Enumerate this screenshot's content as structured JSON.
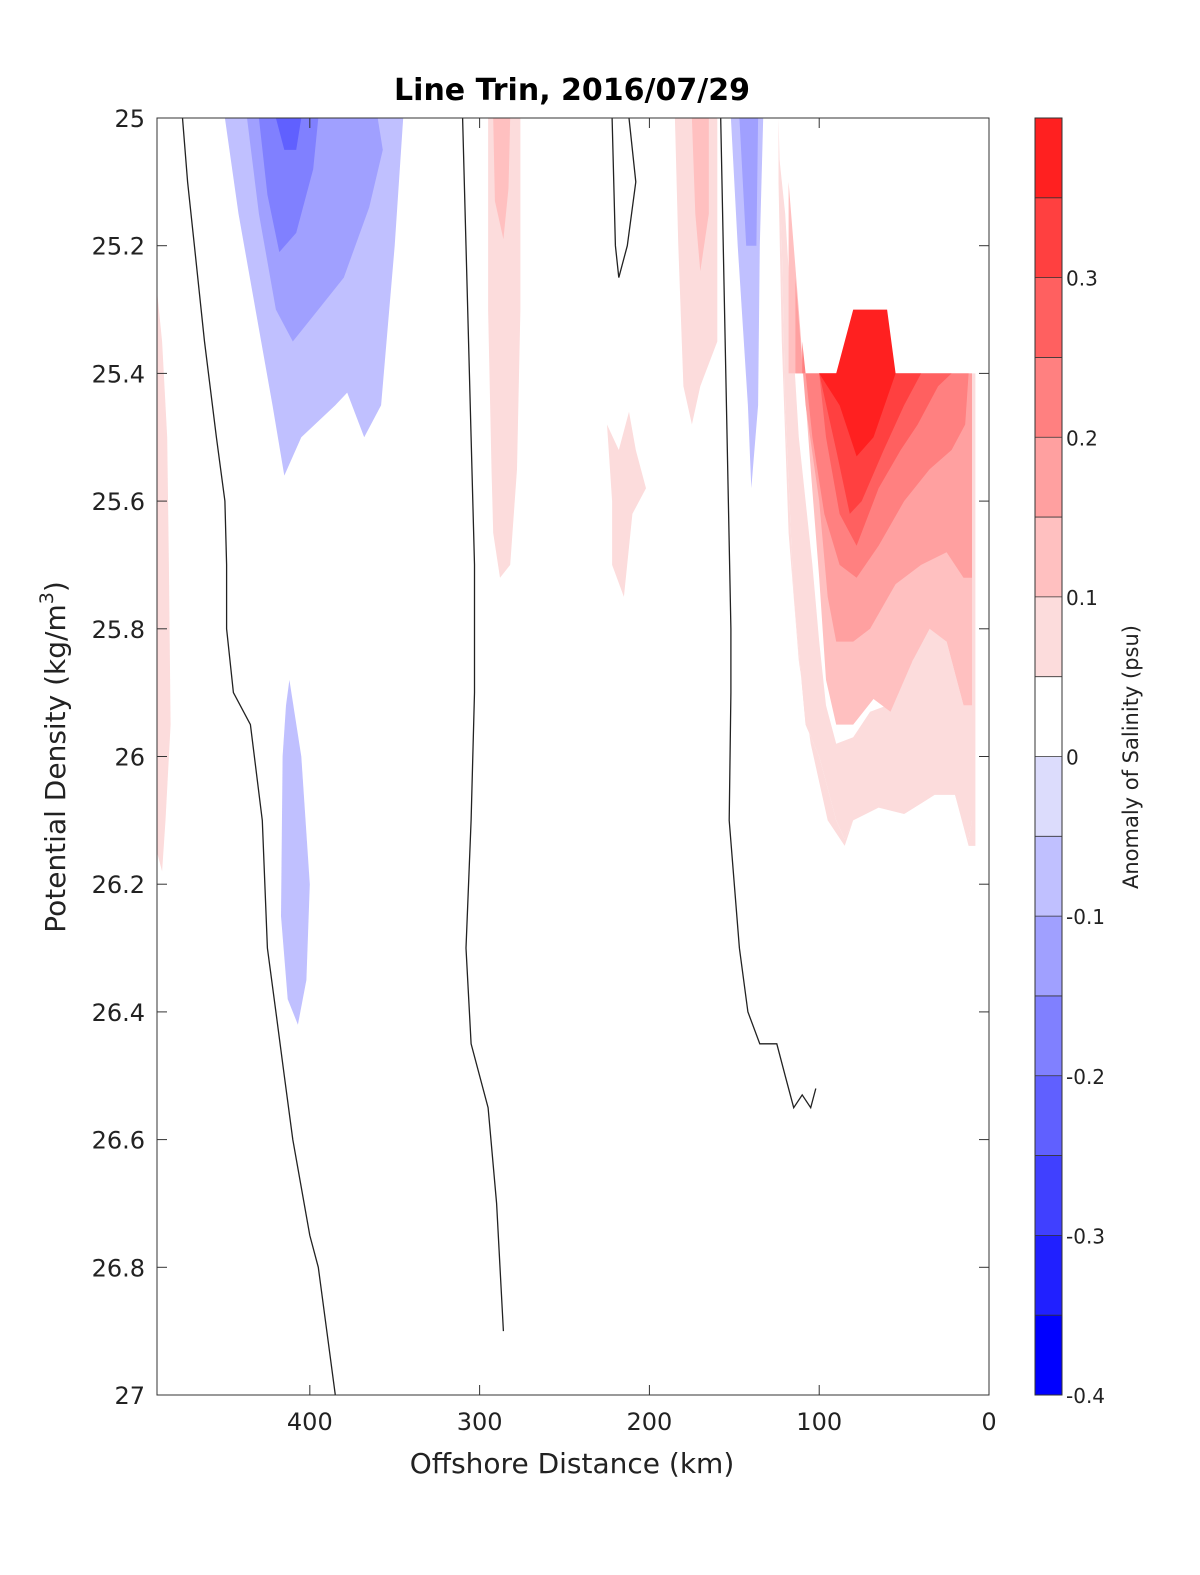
{
  "chart_data": {
    "type": "contourf",
    "title": "Line Trin, 2016/07/29",
    "xlabel": "Offshore Distance (km)",
    "ylabel": "Potential Density (kg/m",
    "ylabel_superscript": "3",
    "ylabel_close": ")",
    "xlim": [
      490,
      0
    ],
    "ylim": [
      25,
      27
    ],
    "x_reversed": true,
    "y_reversed": true,
    "xticks": [
      400,
      300,
      200,
      100,
      0
    ],
    "xtick_labels": [
      "400",
      "300",
      "200",
      "100",
      "0"
    ],
    "yticks": [
      25,
      25.2,
      25.4,
      25.6,
      25.8,
      26,
      26.2,
      26.4,
      26.6,
      26.8,
      27
    ],
    "ytick_labels": [
      "25",
      "25.2",
      "25.4",
      "25.6",
      "25.8",
      "26",
      "26.2",
      "26.4",
      "26.6",
      "26.8",
      "27"
    ],
    "grid": false,
    "colorbar": {
      "label": "Anomaly of Salinity (psu)",
      "range": [
        -0.4,
        0.4
      ],
      "levels": [
        -0.4,
        -0.35,
        -0.3,
        -0.25,
        -0.2,
        -0.15,
        -0.1,
        -0.05,
        0,
        0.05,
        0.1,
        0.15,
        0.2,
        0.25,
        0.3,
        0.35,
        0.4
      ],
      "colors": [
        "#0000ff",
        "#2020ff",
        "#4040ff",
        "#6060ff",
        "#8080ff",
        "#a0a0ff",
        "#c0c0ff",
        "#dcdcfc",
        "#ffffff",
        "#fcdcdc",
        "#ffc0c0",
        "#ffa0a0",
        "#ff8080",
        "#ff6060",
        "#ff4040",
        "#ff2020"
      ],
      "tick_values": [
        -0.4,
        -0.3,
        -0.2,
        -0.1,
        0,
        0.1,
        0.2,
        0.3
      ],
      "tick_labels": [
        "-0.4",
        "-0.3",
        "-0.2",
        "-0.1",
        "0",
        "0.1",
        "0.2",
        "0.3"
      ]
    },
    "filled_regions": [
      {
        "level": 0.05,
        "points": [
          [
            490,
            25.27
          ],
          [
            487,
            25.35
          ],
          [
            484,
            25.5
          ],
          [
            483,
            25.7
          ],
          [
            482,
            25.95
          ],
          [
            485,
            26.1
          ],
          [
            487,
            26.18
          ],
          [
            490,
            26.15
          ]
        ]
      },
      {
        "level": -0.1,
        "points": [
          [
            450,
            25
          ],
          [
            442,
            25.15
          ],
          [
            432,
            25.3
          ],
          [
            422,
            25.45
          ],
          [
            415,
            25.56
          ],
          [
            405,
            25.5
          ],
          [
            385,
            25.45
          ],
          [
            378,
            25.43
          ],
          [
            368,
            25.5
          ],
          [
            358,
            25.45
          ],
          [
            350,
            25.2
          ],
          [
            345,
            25
          ]
        ]
      },
      {
        "level": -0.15,
        "points": [
          [
            437,
            25
          ],
          [
            430,
            25.15
          ],
          [
            420,
            25.3
          ],
          [
            410,
            25.35
          ],
          [
            395,
            25.3
          ],
          [
            380,
            25.25
          ],
          [
            365,
            25.14
          ],
          [
            357,
            25.05
          ],
          [
            360,
            25
          ]
        ]
      },
      {
        "level": -0.2,
        "points": [
          [
            430,
            25
          ],
          [
            425,
            25.12
          ],
          [
            418,
            25.21
          ],
          [
            408,
            25.18
          ],
          [
            398,
            25.08
          ],
          [
            395,
            25
          ]
        ]
      },
      {
        "level": -0.25,
        "points": [
          [
            420,
            25
          ],
          [
            415,
            25.05
          ],
          [
            408,
            25.05
          ],
          [
            405,
            25
          ]
        ]
      },
      {
        "level": -0.1,
        "points": [
          [
            412,
            25.88
          ],
          [
            405,
            26.0
          ],
          [
            400,
            26.2
          ],
          [
            402,
            26.35
          ],
          [
            407,
            26.42
          ],
          [
            413,
            26.38
          ],
          [
            417,
            26.25
          ],
          [
            416,
            26.0
          ],
          [
            414,
            25.92
          ]
        ]
      },
      {
        "level": 0.05,
        "points": [
          [
            295,
            25
          ],
          [
            295,
            25.3
          ],
          [
            293,
            25.55
          ],
          [
            292,
            25.65
          ],
          [
            288,
            25.72
          ],
          [
            282,
            25.7
          ],
          [
            278,
            25.55
          ],
          [
            276,
            25.3
          ],
          [
            276,
            25
          ],
          [
            274,
            25
          ]
        ]
      },
      {
        "level": 0.05,
        "points": [
          [
            295,
            25
          ],
          [
            276,
            25
          ]
        ]
      },
      {
        "level": 0.1,
        "points": [
          [
            292,
            25
          ],
          [
            291,
            25.13
          ],
          [
            286,
            25.19
          ],
          [
            283,
            25.11
          ],
          [
            282,
            25
          ],
          [
            280,
            25
          ]
        ]
      },
      {
        "level": 0.05,
        "points": [
          [
            225,
            25.48
          ],
          [
            222,
            25.6
          ],
          [
            222,
            25.7
          ],
          [
            215,
            25.75
          ],
          [
            210,
            25.62
          ],
          [
            202,
            25.58
          ],
          [
            208,
            25.52
          ],
          [
            212,
            25.46
          ],
          [
            218,
            25.52
          ]
        ]
      },
      {
        "level": 0.05,
        "points": [
          [
            185,
            25
          ],
          [
            183,
            25.2
          ],
          [
            180,
            25.42
          ],
          [
            175,
            25.48
          ],
          [
            170,
            25.42
          ],
          [
            160,
            25.35
          ],
          [
            160,
            25
          ],
          [
            170,
            25
          ]
        ]
      },
      {
        "level": 0.1,
        "points": [
          [
            175,
            25
          ],
          [
            173,
            25.15
          ],
          [
            170,
            25.24
          ],
          [
            165,
            25.15
          ],
          [
            165,
            25
          ]
        ]
      },
      {
        "level": -0.1,
        "points": [
          [
            152,
            25
          ],
          [
            148,
            25.2
          ],
          [
            142,
            25.45
          ],
          [
            140,
            25.58
          ],
          [
            136,
            25.45
          ],
          [
            135,
            25.2
          ],
          [
            133,
            25
          ],
          [
            140,
            25
          ]
        ]
      },
      {
        "level": -0.15,
        "points": [
          [
            147,
            25
          ],
          [
            143,
            25.2
          ],
          [
            137,
            25.2
          ],
          [
            136,
            25
          ]
        ]
      },
      {
        "level": 0.05,
        "points": [
          [
            124,
            25
          ],
          [
            122,
            25.2
          ],
          [
            120,
            25.45
          ],
          [
            115,
            25.75
          ],
          [
            108,
            25.95
          ],
          [
            100,
            26.0
          ],
          [
            90,
            26.1
          ],
          [
            85,
            26.13
          ],
          [
            80,
            26.1
          ],
          [
            65,
            26.08
          ],
          [
            50,
            26.09
          ],
          [
            38,
            26.06
          ],
          [
            25,
            26.05
          ],
          [
            20,
            26.05
          ],
          [
            12,
            26.13
          ],
          [
            10,
            26.1
          ],
          [
            10,
            25.4
          ],
          [
            8,
            25.4
          ],
          [
            8,
            26.14
          ],
          [
            12,
            26.14
          ],
          [
            20,
            26.06
          ],
          [
            32,
            26.06
          ],
          [
            38,
            26.07
          ],
          [
            50,
            26.09
          ],
          [
            65,
            26.08
          ],
          [
            80,
            26.1
          ],
          [
            85,
            26.14
          ],
          [
            95,
            26.1
          ],
          [
            105,
            25.98
          ],
          [
            112,
            25.85
          ],
          [
            118,
            25.65
          ],
          [
            122,
            25.35
          ],
          [
            124,
            25.1
          ],
          [
            124,
            25
          ]
        ]
      },
      {
        "level": 0.05,
        "points": [
          [
            124,
            25.05
          ],
          [
            120,
            25.15
          ],
          [
            112,
            25.5
          ],
          [
            104,
            25.7
          ],
          [
            100,
            25.82
          ],
          [
            96,
            25.92
          ],
          [
            90,
            25.98
          ],
          [
            80,
            25.97
          ],
          [
            70,
            25.93
          ],
          [
            60,
            25.92
          ],
          [
            45,
            25.85
          ],
          [
            35,
            25.78
          ],
          [
            25,
            25.82
          ],
          [
            15,
            25.92
          ],
          [
            10,
            25.92
          ],
          [
            10,
            26.1
          ],
          [
            12,
            26.13
          ],
          [
            20,
            26.06
          ],
          [
            32,
            26.06
          ],
          [
            38,
            26.07
          ],
          [
            50,
            26.09
          ],
          [
            65,
            26.08
          ],
          [
            80,
            26.1
          ],
          [
            85,
            26.13
          ],
          [
            90,
            26.1
          ],
          [
            100,
            26.0
          ],
          [
            108,
            25.95
          ],
          [
            115,
            25.75
          ],
          [
            120,
            25.45
          ],
          [
            122,
            25.2
          ]
        ]
      },
      {
        "level": 0.1,
        "points": [
          [
            118,
            25.1
          ],
          [
            112,
            25.3
          ],
          [
            105,
            25.55
          ],
          [
            100,
            25.72
          ],
          [
            96,
            25.88
          ],
          [
            90,
            25.95
          ],
          [
            80,
            25.95
          ],
          [
            68,
            25.91
          ],
          [
            58,
            25.93
          ],
          [
            45,
            25.85
          ],
          [
            35,
            25.8
          ],
          [
            25,
            25.82
          ],
          [
            15,
            25.92
          ],
          [
            10,
            25.92
          ],
          [
            10,
            25.4
          ],
          [
            118,
            25.4
          ]
        ]
      },
      {
        "level": 0.15,
        "points": [
          [
            114,
            25.25
          ],
          [
            108,
            25.45
          ],
          [
            100,
            25.6
          ],
          [
            95,
            25.75
          ],
          [
            90,
            25.82
          ],
          [
            80,
            25.82
          ],
          [
            70,
            25.8
          ],
          [
            55,
            25.73
          ],
          [
            40,
            25.7
          ],
          [
            25,
            25.68
          ],
          [
            15,
            25.72
          ],
          [
            10,
            25.72
          ],
          [
            10,
            25.4
          ],
          [
            114,
            25.4
          ]
        ]
      },
      {
        "level": 0.2,
        "points": [
          [
            110,
            25.35
          ],
          [
            104,
            25.5
          ],
          [
            97,
            25.62
          ],
          [
            88,
            25.7
          ],
          [
            78,
            25.72
          ],
          [
            65,
            25.67
          ],
          [
            50,
            25.6
          ],
          [
            35,
            25.55
          ],
          [
            22,
            25.52
          ],
          [
            14,
            25.48
          ],
          [
            12,
            25.4
          ],
          [
            110,
            25.4
          ]
        ]
      },
      {
        "level": 0.25,
        "points": [
          [
            100,
            25.4
          ],
          [
            96,
            25.5
          ],
          [
            88,
            25.62
          ],
          [
            78,
            25.67
          ],
          [
            65,
            25.58
          ],
          [
            52,
            25.52
          ],
          [
            42,
            25.48
          ],
          [
            30,
            25.42
          ],
          [
            22,
            25.4
          ]
        ]
      },
      {
        "level": 0.3,
        "points": [
          [
            100,
            25.4
          ],
          [
            90,
            25.52
          ],
          [
            82,
            25.62
          ],
          [
            75,
            25.6
          ],
          [
            62,
            25.52
          ],
          [
            50,
            25.45
          ],
          [
            40,
            25.4
          ]
        ]
      },
      {
        "level": 0.35,
        "points": [
          [
            100,
            25.4
          ],
          [
            90,
            25.4
          ],
          [
            80,
            25.3
          ],
          [
            60,
            25.3
          ],
          [
            55,
            25.4
          ],
          [
            68,
            25.5
          ],
          [
            78,
            25.53
          ],
          [
            88,
            25.45
          ]
        ]
      }
    ],
    "contour_lines": [
      [
        [
          475,
          25
        ],
        [
          472,
          25.1
        ],
        [
          468,
          25.2
        ],
        [
          462,
          25.35
        ],
        [
          455,
          25.5
        ],
        [
          450,
          25.6
        ],
        [
          449,
          25.7
        ],
        [
          449,
          25.8
        ],
        [
          445,
          25.9
        ],
        [
          435,
          25.95
        ],
        [
          428,
          26.1
        ],
        [
          425,
          26.3
        ],
        [
          420,
          26.4
        ],
        [
          415,
          26.5
        ],
        [
          410,
          26.6
        ],
        [
          400,
          26.75
        ],
        [
          395,
          26.8
        ],
        [
          390,
          26.9
        ],
        [
          385,
          27.0
        ]
      ],
      [
        [
          310,
          25
        ],
        [
          308,
          25.2
        ],
        [
          305,
          25.5
        ],
        [
          303,
          25.7
        ],
        [
          303,
          25.9
        ],
        [
          305,
          26.1
        ],
        [
          308,
          26.3
        ],
        [
          305,
          26.45
        ],
        [
          295,
          26.55
        ],
        [
          290,
          26.7
        ],
        [
          288,
          26.8
        ],
        [
          286,
          26.9
        ]
      ],
      [
        [
          222,
          25
        ],
        [
          220,
          25.2
        ],
        [
          218,
          25.25
        ],
        [
          213,
          25.2
        ],
        [
          208,
          25.1
        ],
        [
          212,
          25
        ]
      ],
      [
        [
          158,
          25
        ],
        [
          155,
          25.4
        ],
        [
          152,
          25.8
        ],
        [
          152,
          25.9
        ],
        [
          153,
          26.1
        ],
        [
          150,
          26.2
        ],
        [
          147,
          26.3
        ],
        [
          142,
          26.4
        ],
        [
          135,
          26.45
        ],
        [
          130,
          26.45
        ],
        [
          125,
          26.45
        ],
        [
          120,
          26.5
        ],
        [
          115,
          26.55
        ],
        [
          110,
          26.53
        ],
        [
          105,
          26.55
        ],
        [
          102,
          26.52
        ]
      ]
    ]
  }
}
